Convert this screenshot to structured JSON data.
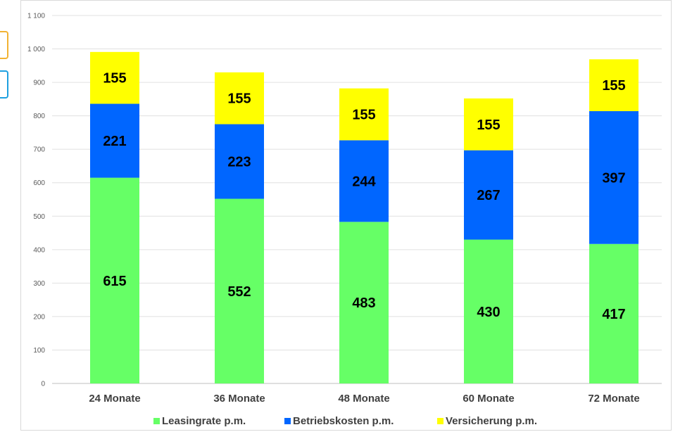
{
  "chart_data": {
    "type": "bar",
    "stacked": true,
    "categories": [
      "24 Monate",
      "36 Monate",
      "48 Monate",
      "60 Monate",
      "72 Monate"
    ],
    "series": [
      {
        "name": "Leasingrate p.m.",
        "color": "#66ff66",
        "values": [
          615,
          552,
          483,
          430,
          417
        ]
      },
      {
        "name": "Betriebskosten p.m.",
        "color": "#0066ff",
        "values": [
          221,
          223,
          244,
          267,
          397
        ]
      },
      {
        "name": "Versicherung p.m.",
        "color": "#ffff00",
        "values": [
          155,
          155,
          155,
          155,
          155
        ]
      }
    ],
    "ylim": [
      0,
      1100
    ],
    "yticks": [
      0,
      100,
      200,
      300,
      400,
      500,
      600,
      700,
      800,
      900,
      1000,
      1100
    ],
    "ytick_labels": [
      "0",
      "100",
      "200",
      "300",
      "400",
      "500",
      "600",
      "700",
      "800",
      "900",
      "1 000",
      "1 100"
    ],
    "grid": true,
    "legend_position": "bottom",
    "title": "",
    "xlabel": "",
    "ylabel": ""
  }
}
